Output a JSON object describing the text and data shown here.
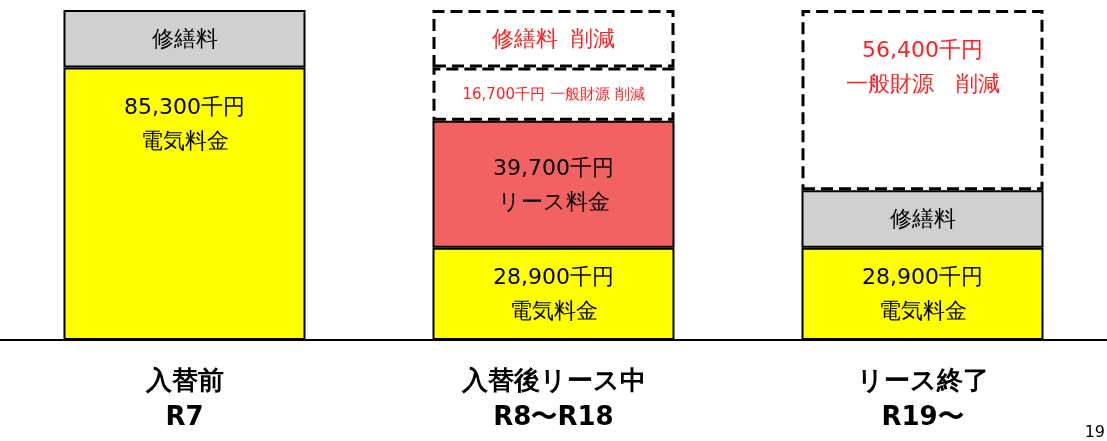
{
  "chart_data": {
    "type": "bar",
    "stacked": true,
    "grid": false,
    "legend": false,
    "tick_labels": "x",
    "categories": [
      "入替前\nR7",
      "入替後リース中\nR8〜R18",
      "リース終了\nR19〜"
    ],
    "series": [
      {
        "color": "#ffff00",
        "values": [
          85300,
          28900,
          28900
        ],
        "value_labels": [
          "85,300千円電気料金",
          "28,900千円電気料金",
          "28,900千円電気料金"
        ]
      },
      {
        "color": "#d0d0d0",
        "values": [
          18000,
          null,
          18000
        ],
        "value_labels": [
          "修繕料",
          null,
          "修繕料"
        ]
      },
      {
        "color": "#f26262",
        "values": [
          null,
          39700,
          null
        ],
        "value_labels": [
          null,
          "39,700千円リース料金",
          null
        ]
      },
      {
        "color": "#ffffff",
        "line_style": "dashed",
        "values": [
          null,
          16700,
          56400
        ],
        "value_labels": [
          null,
          "16,700千円 一般財源 削減",
          "56,400千円一般財源　削減"
        ]
      },
      {
        "color": "#ffffff",
        "line_style": "dashed",
        "values": [
          null,
          18000,
          null
        ],
        "value_labels": [
          null,
          "修繕料  削減",
          null
        ]
      }
    ],
    "annotations": [
      "19"
    ]
  }
}
